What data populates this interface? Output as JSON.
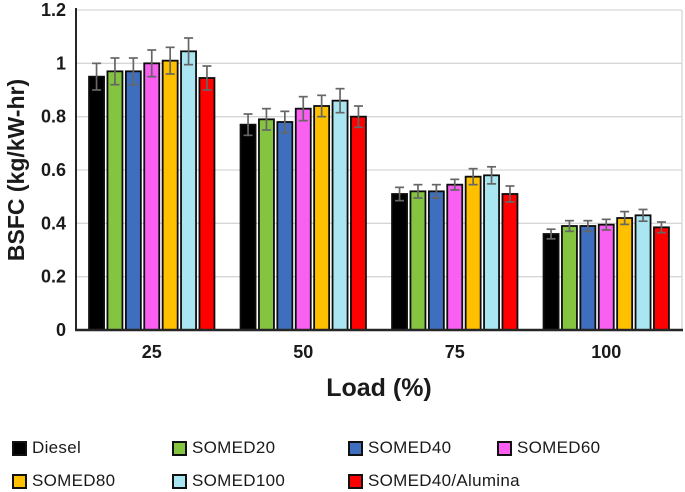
{
  "figure": {
    "background": "#ffffff"
  },
  "chart_data": {
    "type": "bar",
    "title": "",
    "xlabel": "Load (%)",
    "ylabel": "BSFC (kg/kW-hr)",
    "categories": [
      "25",
      "50",
      "75",
      "100"
    ],
    "y_ticks": [
      "0",
      "0.2",
      "0.4",
      "0.6",
      "0.8",
      "1",
      "1.2"
    ],
    "ylim": [
      0,
      1.2
    ],
    "y_step": 0.2,
    "grid": "horizontal",
    "legend_position": "bottom",
    "error_bars": true,
    "series": [
      {
        "name": "Diesel",
        "color": "#000000",
        "values": [
          0.95,
          0.77,
          0.51,
          0.36
        ],
        "errors": [
          0.05,
          0.04,
          0.025,
          0.018
        ]
      },
      {
        "name": "SOMED20",
        "color": "#85C441",
        "values": [
          0.97,
          0.79,
          0.52,
          0.39
        ],
        "errors": [
          0.05,
          0.04,
          0.025,
          0.02
        ]
      },
      {
        "name": "SOMED40",
        "color": "#3E6FBE",
        "values": [
          0.97,
          0.78,
          0.52,
          0.39
        ],
        "errors": [
          0.05,
          0.04,
          0.025,
          0.02
        ]
      },
      {
        "name": "SOMED60",
        "color": "#F95FF0",
        "values": [
          1.0,
          0.83,
          0.545,
          0.395
        ],
        "errors": [
          0.05,
          0.045,
          0.02,
          0.02
        ]
      },
      {
        "name": "SOMED80",
        "color": "#FFC000",
        "values": [
          1.01,
          0.84,
          0.575,
          0.42
        ],
        "errors": [
          0.05,
          0.04,
          0.03,
          0.024
        ]
      },
      {
        "name": "SOMED100",
        "color": "#A9E6F2",
        "values": [
          1.045,
          0.86,
          0.58,
          0.43
        ],
        "errors": [
          0.05,
          0.045,
          0.032,
          0.022
        ]
      },
      {
        "name": "SOMED40/Alumina",
        "color": "#FE0000",
        "values": [
          0.945,
          0.8,
          0.51,
          0.385
        ],
        "errors": [
          0.045,
          0.04,
          0.03,
          0.02
        ]
      }
    ],
    "colors": {
      "grid": "#d6d6d6",
      "axis": "#262626",
      "error_bar": "#666666",
      "bar_border": "#0d0d0d",
      "text": "#1a1a1a"
    }
  }
}
